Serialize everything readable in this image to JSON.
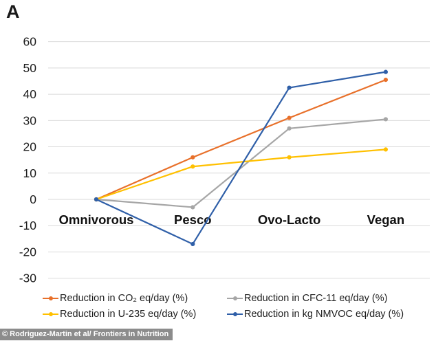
{
  "panel_label": "A",
  "attribution": "© Rodriguez-Martin et al/ Frontiers in Nutrition",
  "colors": {
    "gridline": "#d9d9d9",
    "axis_text": "#1d1d1d",
    "category_text": "#111111",
    "attribution_bg": "#8c8c8c",
    "attribution_text": "#ffffff"
  },
  "chart_data": {
    "type": "line",
    "title": "",
    "xlabel": "",
    "ylabel": "",
    "categories": [
      "Omnivorous",
      "Pesco",
      "Ovo-Lacto",
      "Vegan"
    ],
    "series": [
      {
        "name": "Reduction in CO₂ eq/day (%)",
        "color": "#e8702a",
        "values": [
          0,
          16,
          31,
          45.5
        ]
      },
      {
        "name": "Reduction in CFC-11 eq/day (%)",
        "color": "#a6a6a6",
        "values": [
          0,
          -3,
          27,
          30.5
        ]
      },
      {
        "name": "Reduction in U-235 eq/day (%)",
        "color": "#ffc000",
        "values": [
          0,
          12.5,
          16,
          19
        ]
      },
      {
        "name": "Reduction in kg NMVOC eq/day (%)",
        "color": "#2f5fa8",
        "values": [
          0,
          -17,
          42.5,
          48.5
        ]
      }
    ],
    "ylim": [
      -30,
      60
    ],
    "yticks": [
      60,
      50,
      40,
      30,
      20,
      10,
      0,
      -10,
      -20,
      -30
    ],
    "grid": true,
    "legend_position": "bottom",
    "legend_columns": 2,
    "legend_order_row_wise": [
      "Reduction in CO₂ eq/day (%)",
      "Reduction in CFC-11 eq/day (%)",
      "Reduction in U-235 eq/day (%)",
      "Reduction in kg NMVOC eq/day (%)"
    ]
  }
}
